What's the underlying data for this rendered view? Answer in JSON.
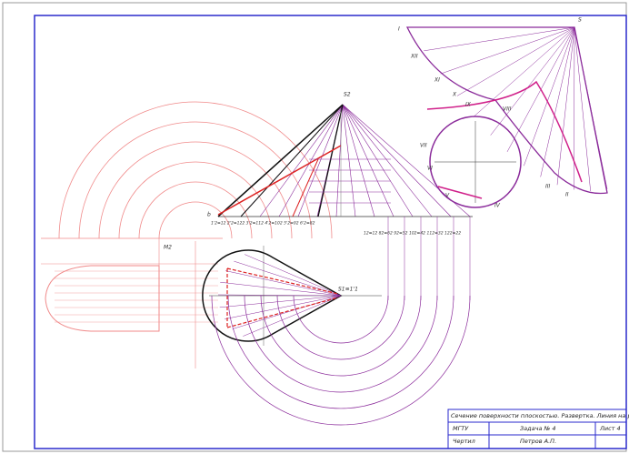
{
  "title_block": {
    "title": "Сечение поверхности плоскостью. Развертка. Линия на развертке",
    "org": "МГТУ",
    "task": "Задача № 4",
    "sheet": "Лист 4",
    "drawn": "Чертил",
    "author": "Петров А.П."
  },
  "labels": {
    "apex_front": "S2",
    "apex_top": "S1≡1'1",
    "apex_dev": "S",
    "base_left": "b",
    "n1": "I",
    "n2": "II",
    "n3": "III",
    "n4": "IV",
    "n5": "V",
    "n6": "VI",
    "n7": "VII",
    "n8": "VIII",
    "n9": "IX",
    "n10": "X",
    "n11": "XI",
    "n12": "XII",
    "m2": "M2",
    "base_row": "1'2≡12 2'2≡122 3'2≡112 4'2≡102 5'2≡92 6'2≡82",
    "right_row": "12≡12 82≡62 92≡52 102≡42 112≡32 122≡22"
  }
}
